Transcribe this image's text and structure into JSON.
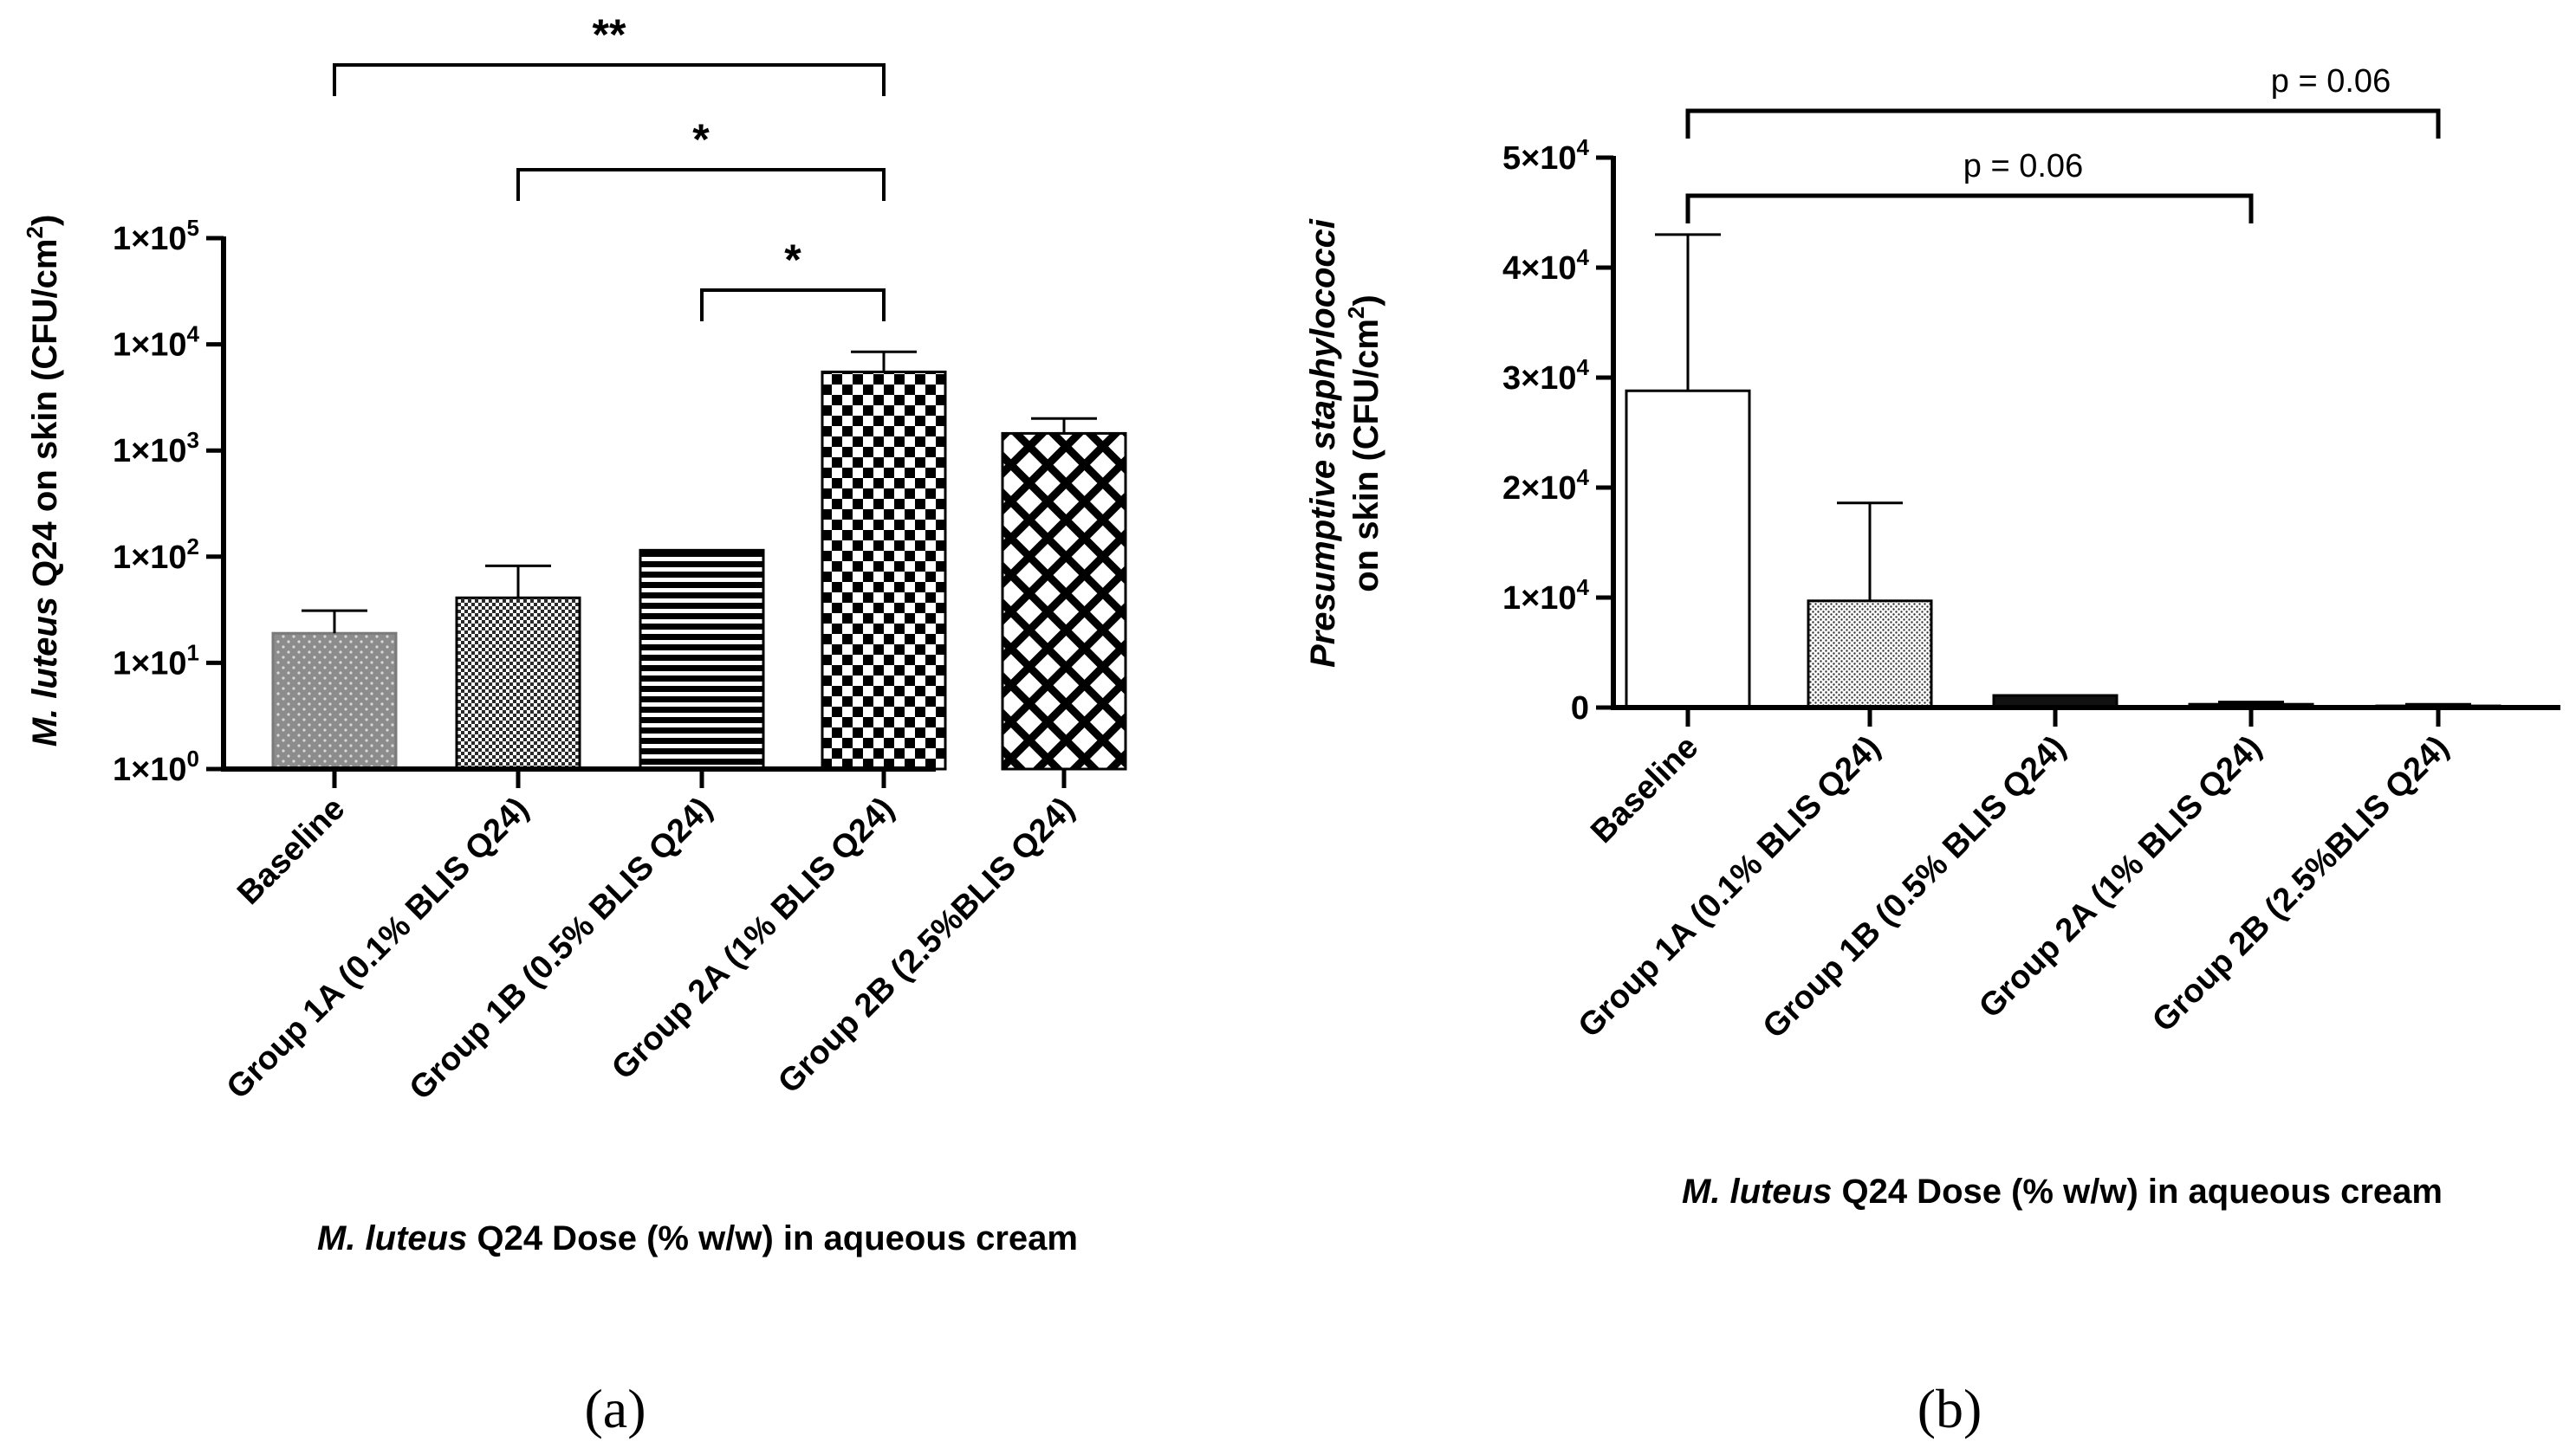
{
  "figure": {
    "panel_a_label": "(a)",
    "panel_b_label": "(b)"
  },
  "chart_data": [
    {
      "id": "a",
      "type": "bar",
      "y_scale": "log",
      "ylim": [
        1,
        100000
      ],
      "categories": [
        "Baseline",
        "Group 1A (0.1% BLIS Q24)",
        "Group 1B (0.5% BLIS Q24)",
        "Group 2A (1% BLIS Q24)",
        "Group 2B (2.5%BLIS Q24)"
      ],
      "values": [
        19,
        41,
        115,
        5500,
        1450
      ],
      "error_upper": [
        31,
        82,
        115,
        8500,
        2000
      ],
      "patterns": [
        "dots-grey",
        "checker-fine",
        "stripes-horizontal",
        "checker-large",
        "crosshatch-diagonal"
      ],
      "y_ticks": [
        {
          "base": "1×10",
          "exp": "0",
          "value": 1
        },
        {
          "base": "1×10",
          "exp": "1",
          "value": 10
        },
        {
          "base": "1×10",
          "exp": "2",
          "value": 100
        },
        {
          "base": "1×10",
          "exp": "3",
          "value": 1000
        },
        {
          "base": "1×10",
          "exp": "4",
          "value": 10000
        },
        {
          "base": "1×10",
          "exp": "5",
          "value": 100000
        }
      ],
      "ylabel": {
        "italic": "M. luteus",
        "rest": " Q24 on skin (CFU/cm",
        "sup": "2",
        "end": ")"
      },
      "xlabel": {
        "italic": "M. luteus",
        "rest": " Q24 Dose (% w/w) in aqueous cream"
      },
      "significance": [
        {
          "from": 0,
          "to": 3,
          "label": "**"
        },
        {
          "from": 1,
          "to": 3,
          "label": "*"
        },
        {
          "from": 2,
          "to": 3,
          "label": "*"
        }
      ]
    },
    {
      "id": "b",
      "type": "bar",
      "y_scale": "linear",
      "ylim": [
        0,
        50000
      ],
      "categories": [
        "Baseline",
        "Group 1A (0.1% BLIS Q24)",
        "Group 1B (0.5% BLIS Q24)",
        "Group 2A (1% BLIS Q24)",
        "Group 2B (2.5%BLIS Q24)"
      ],
      "values": [
        28800,
        9700,
        1100,
        300,
        150
      ],
      "error_upper": [
        43000,
        18600,
        1100,
        500,
        300
      ],
      "patterns": [
        "none",
        "dots-fine",
        "solid-dark",
        "none",
        "none"
      ],
      "y_ticks": [
        {
          "base": "0",
          "exp": "",
          "value": 0
        },
        {
          "base": "1×10",
          "exp": "4",
          "value": 10000
        },
        {
          "base": "2×10",
          "exp": "4",
          "value": 20000
        },
        {
          "base": "3×10",
          "exp": "4",
          "value": 30000
        },
        {
          "base": "4×10",
          "exp": "4",
          "value": 40000
        },
        {
          "base": "5×10",
          "exp": "4",
          "value": 50000
        }
      ],
      "ylabel_line1": "Presumptive staphylococci",
      "ylabel_line2": {
        "rest": "on skin (CFU/cm",
        "sup": "2",
        "end": ")"
      },
      "xlabel": {
        "italic": "M. luteus",
        "rest": " Q24 Dose (% w/w) in aqueous cream"
      },
      "significance": [
        {
          "from": 0,
          "to": 4,
          "label": "p = 0.06"
        },
        {
          "from": 0,
          "to": 3,
          "label": "p = 0.06"
        }
      ]
    }
  ]
}
